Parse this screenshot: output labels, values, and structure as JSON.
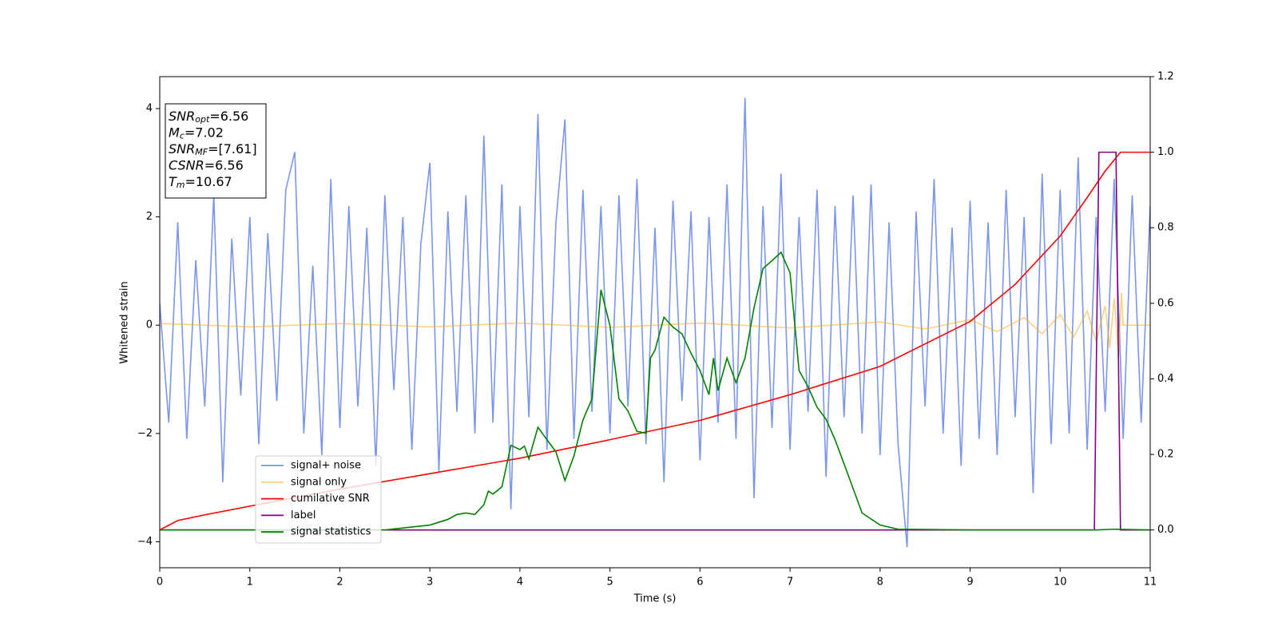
{
  "chart_data": {
    "type": "line",
    "xlabel": "Time (s)",
    "ylabel": "Whitened strain",
    "xlim": [
      0,
      11
    ],
    "xticks": [
      0,
      1,
      2,
      3,
      4,
      5,
      6,
      7,
      8,
      9,
      10,
      11
    ],
    "ylim": [
      -4.48,
      4.59
    ],
    "yticks": [
      {
        "value": -4,
        "label": "−4"
      },
      {
        "value": -2,
        "label": "−2"
      },
      0,
      2,
      4
    ],
    "y2lim": [
      -0.1,
      1.2
    ],
    "y2ticks": [
      {
        "value": 0,
        "label": "0.0"
      },
      {
        "value": 0.2,
        "label": "0.2"
      },
      {
        "value": 0.4,
        "label": "0.4"
      },
      {
        "value": 0.6,
        "label": "0.6"
      },
      {
        "value": 0.8,
        "label": "0.8"
      },
      {
        "value": 1.0,
        "label": "1.0"
      },
      {
        "value": 1.2,
        "label": "1.2"
      }
    ],
    "annotations": [
      {
        "main": "SNR",
        "sub": "opt",
        "rest": "=6.56"
      },
      {
        "main": "M",
        "sub": "c",
        "rest": "=7.02"
      },
      {
        "main": "SNR",
        "sub": "MF",
        "rest": "=[7.61]"
      },
      {
        "main": "CSNR",
        "rest": "=6.56"
      },
      {
        "main": "T",
        "sub": "m",
        "rest": "=10.67"
      }
    ],
    "series": [
      {
        "name": "signal+ noise",
        "color": "#4169e1",
        "alpha": 0.7,
        "x": [
          0,
          0.1,
          0.2,
          0.3,
          0.4,
          0.5,
          0.6,
          0.7,
          0.8,
          0.9,
          1,
          1.1,
          1.2,
          1.3,
          1.4,
          1.5,
          1.6,
          1.7,
          1.8,
          1.9,
          2,
          2.1,
          2.2,
          2.3,
          2.4,
          2.5,
          2.6,
          2.7,
          2.8,
          2.9,
          3,
          3.1,
          3.2,
          3.3,
          3.4,
          3.5,
          3.6,
          3.7,
          3.8,
          3.9,
          4,
          4.1,
          4.2,
          4.3,
          4.4,
          4.5,
          4.6,
          4.7,
          4.8,
          4.9,
          5,
          5.1,
          5.2,
          5.3,
          5.4,
          5.5,
          5.6,
          5.7,
          5.8,
          5.9,
          6,
          6.1,
          6.2,
          6.3,
          6.4,
          6.5,
          6.6,
          6.7,
          6.8,
          6.9,
          7,
          7.1,
          7.2,
          7.3,
          7.4,
          7.5,
          7.6,
          7.7,
          7.8,
          7.9,
          8,
          8.1,
          8.2,
          8.3,
          8.4,
          8.5,
          8.6,
          8.7,
          8.8,
          8.9,
          9,
          9.1,
          9.2,
          9.3,
          9.4,
          9.5,
          9.6,
          9.7,
          9.8,
          9.9,
          10,
          10.1,
          10.2,
          10.3,
          10.4,
          10.5,
          10.6,
          10.7,
          10.8,
          10.9,
          11
        ],
        "values": [
          0.4,
          -1.8,
          1.9,
          -2.1,
          1.2,
          -1.5,
          2.4,
          -2.9,
          1.6,
          -1.3,
          2.0,
          -2.2,
          1.7,
          -1.4,
          2.5,
          3.2,
          -2.0,
          1.1,
          -2.4,
          2.7,
          -1.9,
          2.2,
          -1.5,
          1.8,
          -2.6,
          2.4,
          -1.2,
          2.0,
          -2.3,
          1.5,
          3.0,
          -2.7,
          2.1,
          -1.6,
          2.4,
          -2.0,
          3.5,
          -1.8,
          2.6,
          -3.4,
          2.2,
          -1.7,
          3.9,
          -2.3,
          1.9,
          3.8,
          -2.1,
          2.5,
          -1.6,
          2.2,
          -2.0,
          2.4,
          -1.5,
          2.7,
          -2.2,
          1.8,
          -2.9,
          2.3,
          -1.4,
          2.1,
          -2.5,
          2.0,
          -1.8,
          2.6,
          -2.1,
          4.2,
          -3.2,
          2.2,
          -1.9,
          2.8,
          -2.3,
          2.0,
          -1.6,
          2.5,
          -2.8,
          2.2,
          -1.7,
          2.4,
          -2.0,
          2.6,
          -2.4,
          1.9,
          -2.2,
          -4.1,
          2.1,
          -1.5,
          2.7,
          -2.0,
          1.8,
          -2.6,
          2.3,
          -2.1,
          1.9,
          -2.4,
          2.5,
          -1.7,
          2.0,
          -3.1,
          2.8,
          -2.2,
          2.5,
          -2.0,
          3.1,
          -2.3,
          2.0,
          -1.6,
          2.7,
          -2.1,
          2.4,
          -1.8,
          2.2
        ]
      },
      {
        "name": "signal only",
        "color": "#ffa500",
        "alpha": 0.5,
        "x": [
          0,
          1,
          2,
          3,
          4,
          5,
          6,
          7,
          8,
          8.5,
          9,
          9.3,
          9.6,
          9.8,
          10,
          10.15,
          10.3,
          10.4,
          10.5,
          10.55,
          10.6,
          10.65,
          10.68,
          10.7,
          11
        ],
        "values": [
          0.03,
          -0.03,
          0.03,
          -0.03,
          0.04,
          -0.04,
          0.04,
          -0.05,
          0.06,
          -0.07,
          0.1,
          -0.12,
          0.14,
          -0.16,
          0.2,
          -0.22,
          0.26,
          -0.3,
          0.36,
          -0.42,
          0.5,
          -0.6,
          0.6,
          0,
          0
        ]
      },
      {
        "name": "cumilative SNR",
        "color": "#ff0000",
        "alpha": 1,
        "axis": "y2",
        "x": [
          0,
          0.2,
          0.5,
          1,
          2,
          3,
          4,
          5,
          6,
          7,
          8,
          9,
          9.5,
          10,
          10.3,
          10.5,
          10.67,
          11
        ],
        "values": [
          0.0,
          0.025,
          0.04,
          0.063,
          0.108,
          0.149,
          0.19,
          0.239,
          0.29,
          0.358,
          0.433,
          0.552,
          0.65,
          0.778,
          0.88,
          0.95,
          1.0,
          1.0
        ]
      },
      {
        "name": "label",
        "color": "#800080",
        "alpha": 1,
        "axis": "y2",
        "x": [
          0,
          10.38,
          10.43,
          10.62,
          10.67,
          11
        ],
        "values": [
          0,
          0,
          1.0,
          1.0,
          0,
          0
        ]
      },
      {
        "name": "signal statistics",
        "color": "#008000",
        "alpha": 1,
        "axis": "y2",
        "x": [
          0,
          2.5,
          3,
          3.2,
          3.3,
          3.4,
          3.5,
          3.6,
          3.65,
          3.7,
          3.8,
          3.9,
          4.0,
          4.05,
          4.1,
          4.2,
          4.3,
          4.4,
          4.5,
          4.6,
          4.7,
          4.8,
          4.9,
          5.0,
          5.1,
          5.2,
          5.3,
          5.4,
          5.45,
          5.5,
          5.6,
          5.7,
          5.8,
          5.9,
          6.0,
          6.1,
          6.15,
          6.2,
          6.3,
          6.4,
          6.5,
          6.6,
          6.7,
          6.8,
          6.9,
          7.0,
          7.1,
          7.2,
          7.3,
          7.4,
          7.5,
          7.6,
          7.7,
          7.8,
          8.0,
          8.2,
          9,
          10.4,
          10.6,
          11
        ],
        "values": [
          0,
          0,
          0.013,
          0.028,
          0.041,
          0.045,
          0.041,
          0.067,
          0.103,
          0.095,
          0.114,
          0.224,
          0.213,
          0.222,
          0.188,
          0.272,
          0.239,
          0.207,
          0.131,
          0.196,
          0.291,
          0.347,
          0.636,
          0.541,
          0.347,
          0.315,
          0.261,
          0.256,
          0.455,
          0.476,
          0.563,
          0.537,
          0.519,
          0.468,
          0.422,
          0.358,
          0.455,
          0.369,
          0.455,
          0.39,
          0.455,
          0.588,
          0.692,
          0.713,
          0.735,
          0.681,
          0.422,
          0.379,
          0.325,
          0.293,
          0.239,
          0.175,
          0.11,
          0.045,
          0.013,
          0.002,
          0,
          0,
          0.002,
          0
        ]
      }
    ]
  }
}
